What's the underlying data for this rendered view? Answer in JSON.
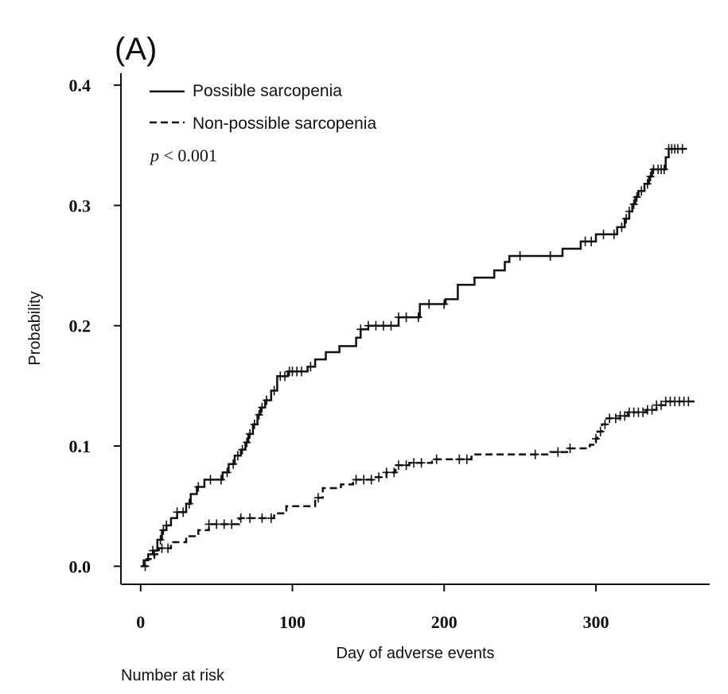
{
  "chart_data": {
    "type": "line",
    "subtype": "kaplan-meier-cumulative-incidence",
    "panel_label": "(A)",
    "title": "",
    "xlabel": "Day of adverse events",
    "ylabel": "Probability",
    "xlim": [
      -13,
      375
    ],
    "ylim": [
      -0.015,
      0.41
    ],
    "x_ticks": [
      0,
      100,
      200,
      300
    ],
    "x_tick_labels": [
      "0",
      "100",
      "200",
      "300"
    ],
    "y_ticks": [
      0.0,
      0.1,
      0.2,
      0.3,
      0.4
    ],
    "y_tick_labels": [
      "0.0",
      "0.1",
      "0.2",
      "0.3",
      "0.4"
    ],
    "grid": false,
    "legend_position": "top-left",
    "annotation": {
      "italic": "p",
      "rest": " < 0.001"
    },
    "risk_table_label": "Number at risk",
    "series": [
      {
        "name": "Possible sarcopenia",
        "line_style": "solid",
        "color": "#111111",
        "steps": [
          [
            0,
            0.0
          ],
          [
            2,
            0.005
          ],
          [
            5,
            0.01
          ],
          [
            8,
            0.013
          ],
          [
            11,
            0.022
          ],
          [
            14,
            0.03
          ],
          [
            17,
            0.034
          ],
          [
            20,
            0.04
          ],
          [
            24,
            0.045
          ],
          [
            30,
            0.052
          ],
          [
            33,
            0.06
          ],
          [
            37,
            0.066
          ],
          [
            42,
            0.072
          ],
          [
            54,
            0.078
          ],
          [
            58,
            0.085
          ],
          [
            62,
            0.092
          ],
          [
            66,
            0.097
          ],
          [
            69,
            0.103
          ],
          [
            71,
            0.11
          ],
          [
            74,
            0.118
          ],
          [
            77,
            0.126
          ],
          [
            79,
            0.132
          ],
          [
            82,
            0.138
          ],
          [
            86,
            0.146
          ],
          [
            90,
            0.158
          ],
          [
            97,
            0.162
          ],
          [
            110,
            0.166
          ],
          [
            115,
            0.172
          ],
          [
            122,
            0.178
          ],
          [
            131,
            0.183
          ],
          [
            142,
            0.19
          ],
          [
            145,
            0.197
          ],
          [
            150,
            0.2
          ],
          [
            170,
            0.207
          ],
          [
            184,
            0.218
          ],
          [
            201,
            0.222
          ],
          [
            209,
            0.234
          ],
          [
            220,
            0.24
          ],
          [
            233,
            0.246
          ],
          [
            240,
            0.253
          ],
          [
            243,
            0.258
          ],
          [
            278,
            0.264
          ],
          [
            290,
            0.27
          ],
          [
            300,
            0.276
          ],
          [
            314,
            0.282
          ],
          [
            319,
            0.289
          ],
          [
            322,
            0.295
          ],
          [
            324,
            0.301
          ],
          [
            326,
            0.307
          ],
          [
            328,
            0.312
          ],
          [
            332,
            0.318
          ],
          [
            335,
            0.324
          ],
          [
            337,
            0.33
          ],
          [
            346,
            0.34
          ],
          [
            348,
            0.347
          ],
          [
            360,
            0.347
          ]
        ],
        "censor_x": [
          8,
          13,
          15,
          17,
          24,
          28,
          32,
          38,
          46,
          53,
          57,
          61,
          64,
          67,
          70,
          72,
          75,
          78,
          80,
          83,
          88,
          92,
          95,
          98,
          100,
          103,
          106,
          112,
          145,
          150,
          155,
          160,
          165,
          170,
          175,
          183,
          190,
          200,
          250,
          270,
          293,
          297,
          305,
          312,
          317,
          320,
          322,
          325,
          327,
          330,
          334,
          336,
          338,
          341,
          343,
          345,
          348,
          350,
          352,
          354,
          357
        ]
      },
      {
        "name": "Non-possible sarcopenia",
        "line_style": "dashed",
        "color": "#111111",
        "steps": [
          [
            0,
            0.0
          ],
          [
            4,
            0.006
          ],
          [
            9,
            0.01
          ],
          [
            12,
            0.015
          ],
          [
            20,
            0.02
          ],
          [
            30,
            0.025
          ],
          [
            38,
            0.03
          ],
          [
            45,
            0.035
          ],
          [
            65,
            0.04
          ],
          [
            88,
            0.044
          ],
          [
            96,
            0.05
          ],
          [
            115,
            0.057
          ],
          [
            120,
            0.065
          ],
          [
            132,
            0.068
          ],
          [
            140,
            0.072
          ],
          [
            153,
            0.074
          ],
          [
            162,
            0.078
          ],
          [
            168,
            0.084
          ],
          [
            177,
            0.086
          ],
          [
            192,
            0.089
          ],
          [
            218,
            0.093
          ],
          [
            270,
            0.095
          ],
          [
            282,
            0.098
          ],
          [
            296,
            0.101
          ],
          [
            300,
            0.106
          ],
          [
            301,
            0.112
          ],
          [
            304,
            0.118
          ],
          [
            307,
            0.123
          ],
          [
            316,
            0.125
          ],
          [
            321,
            0.128
          ],
          [
            333,
            0.13
          ],
          [
            340,
            0.134
          ],
          [
            346,
            0.137
          ],
          [
            365,
            0.137
          ]
        ],
        "censor_x": [
          3,
          9,
          14,
          18,
          45,
          50,
          55,
          60,
          66,
          72,
          80,
          86,
          117,
          142,
          147,
          152,
          157,
          162,
          167,
          170,
          175,
          180,
          185,
          195,
          210,
          215,
          260,
          275,
          283,
          300,
          303,
          306,
          309,
          313,
          316,
          319,
          322,
          325,
          328,
          331,
          334,
          337,
          340,
          343,
          346,
          349,
          352,
          355,
          358,
          361
        ]
      }
    ]
  }
}
